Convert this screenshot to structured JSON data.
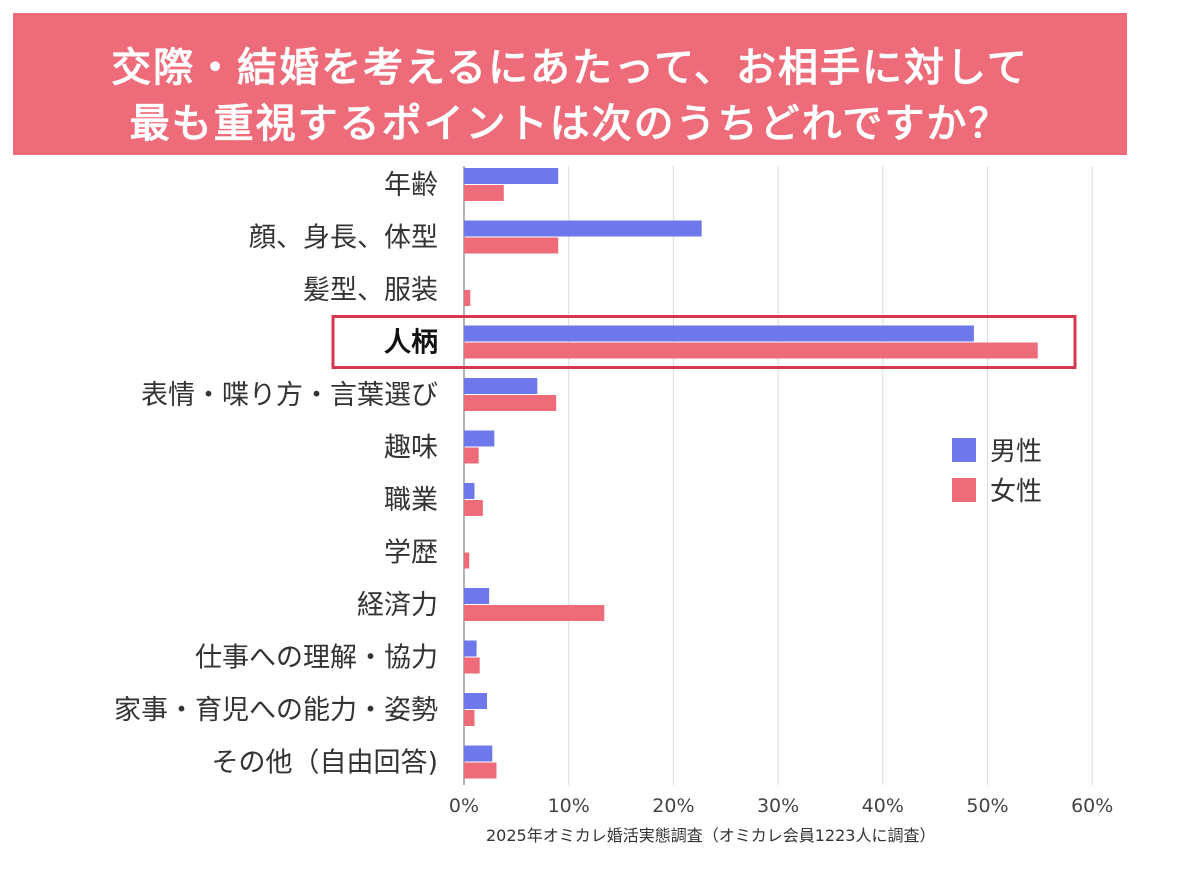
{
  "title": {
    "line1": "交際・結婚を考えるにあたって、お相手に対して",
    "line2": "最も重視するポイントは次のうちどれですか？"
  },
  "colors": {
    "banner": "#ee6b7a",
    "male": "#6f78ea",
    "female": "#ee6b7a",
    "highlight_box": "#d6374d"
  },
  "chart_data": {
    "type": "bar",
    "orientation": "horizontal",
    "categories": [
      "年齢",
      "顔、身長、体型",
      "髪型、服装",
      "人柄",
      "表情・喋り方・言葉選び",
      "趣味",
      "職業",
      "学歴",
      "経済力",
      "仕事への理解・協力",
      "家事・育児への能力・姿勢",
      "その他（自由回答)"
    ],
    "highlighted_category": "人柄",
    "series": [
      {
        "name": "男性",
        "values": [
          9.0,
          22.7,
          0.0,
          48.7,
          7.0,
          2.9,
          1.0,
          0.0,
          2.4,
          1.2,
          2.2,
          2.7
        ]
      },
      {
        "name": "女性",
        "values": [
          3.8,
          9.0,
          0.6,
          54.8,
          8.8,
          1.4,
          1.8,
          0.5,
          13.4,
          1.5,
          1.0,
          3.1
        ]
      }
    ],
    "xlim": [
      0,
      60
    ],
    "xticks": [
      "0%",
      "10%",
      "20%",
      "30%",
      "40%",
      "50%",
      "60%"
    ],
    "grid": true,
    "legend_position": "right"
  },
  "source": "2025年オミカレ婚活実態調査（オミカレ会員1223人に調査）"
}
